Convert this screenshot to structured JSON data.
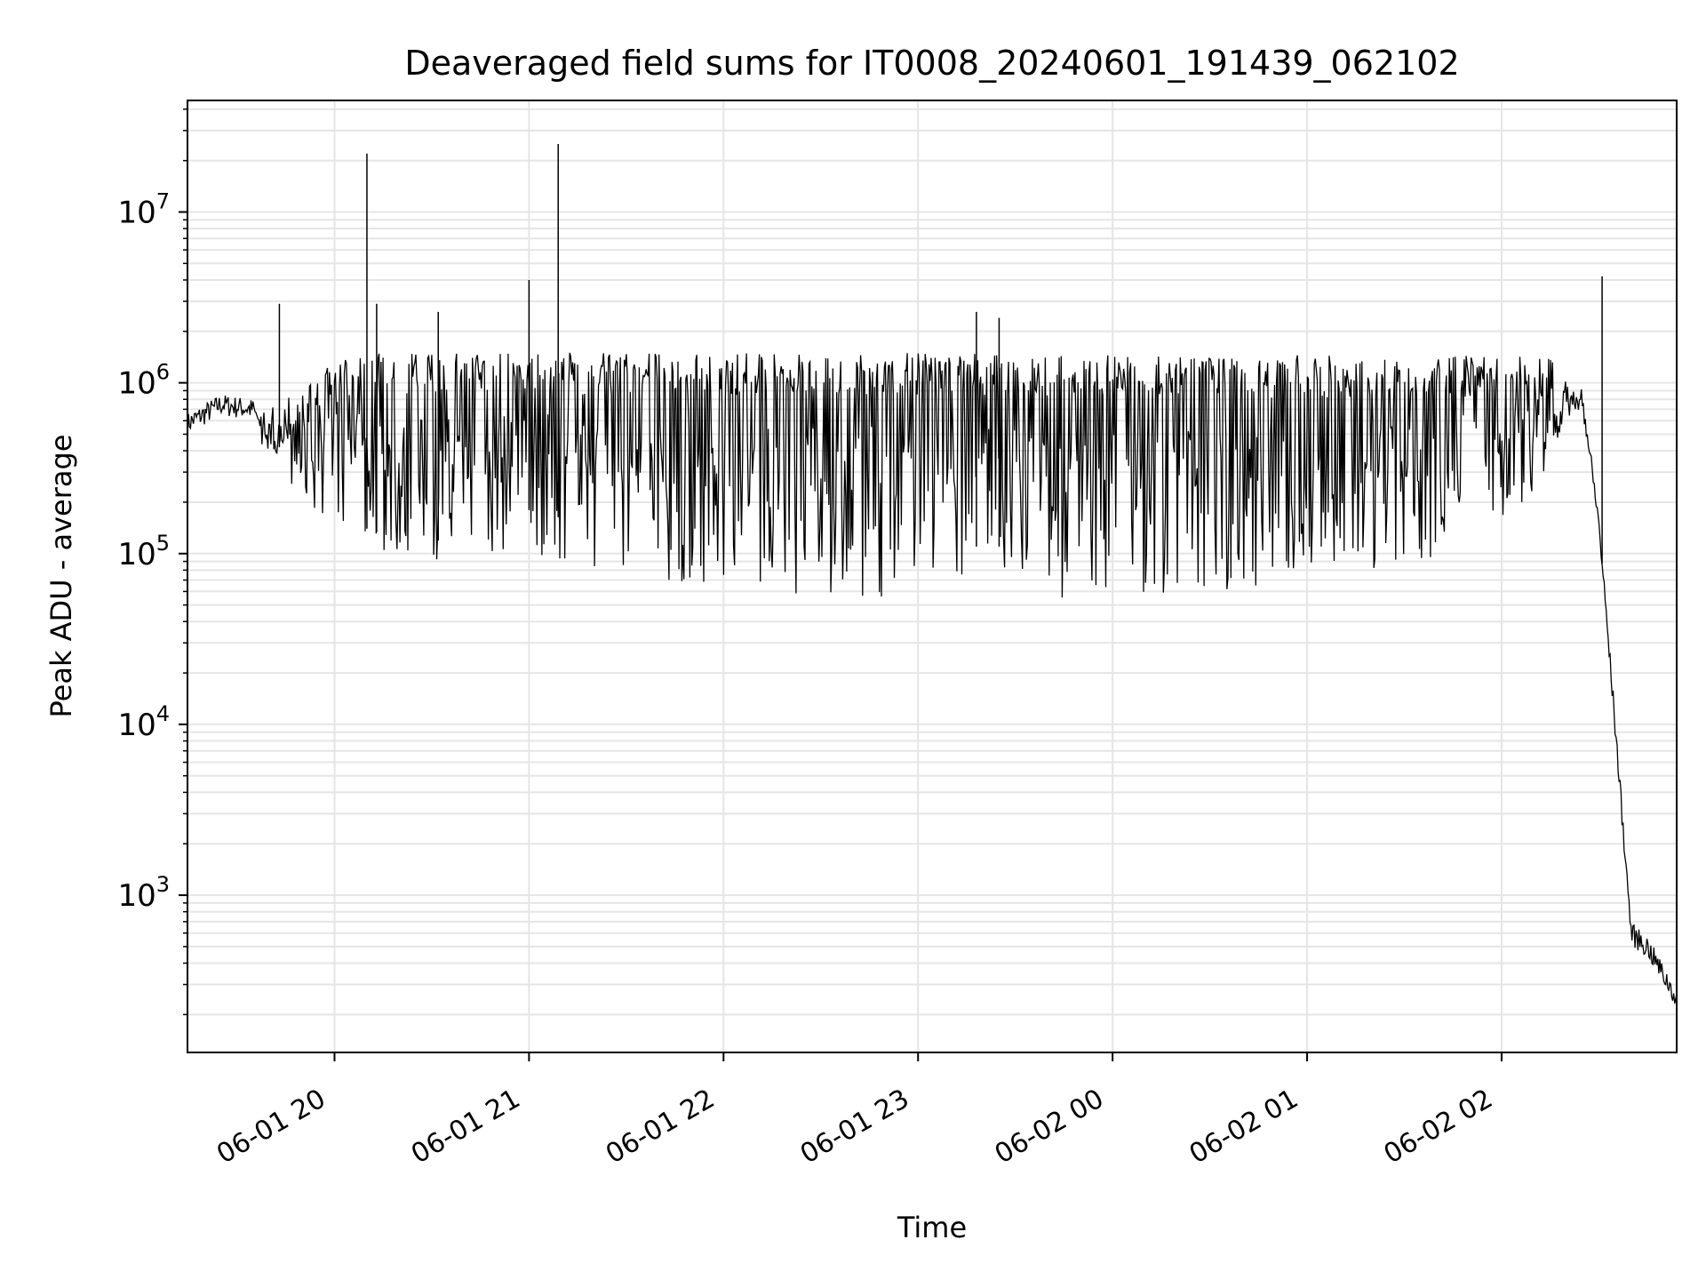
{
  "chart_data": {
    "type": "line",
    "title": "Deaveraged field sums for IT0008_20240601_191439_062102",
    "xlabel": "Time",
    "ylabel": "Peak ADU - average",
    "yscale": "log",
    "xlim": [
      "2024-06-01 19:14:39",
      "2024-06-02 02:54:00"
    ],
    "ylim": [
      120,
      45000000
    ],
    "grid": true,
    "line_color": "#000000",
    "grid_color": "#e5e5e5",
    "x_tick_labels": [
      "06-01 20",
      "06-01 21",
      "06-01 22",
      "06-01 23",
      "06-02 00",
      "06-02 01",
      "06-02 02"
    ],
    "x_ticks": [
      "2024-06-01 20:00",
      "2024-06-01 21:00",
      "2024-06-01 22:00",
      "2024-06-01 23:00",
      "2024-06-02 00:00",
      "2024-06-02 01:00",
      "2024-06-02 02:00"
    ],
    "y_ticks": [
      {
        "value": 1000,
        "base": "10",
        "exp": "3"
      },
      {
        "value": 10000,
        "base": "10",
        "exp": "4"
      },
      {
        "value": 100000,
        "base": "10",
        "exp": "5"
      },
      {
        "value": 1000000,
        "base": "10",
        "exp": "6"
      },
      {
        "value": 10000000,
        "base": "10",
        "exp": "7"
      }
    ],
    "series": [
      {
        "x": [
          "2024-06-01 19:14:39",
          "2024-06-01 19:25",
          "2024-06-01 19:35",
          "2024-06-01 19:40",
          "2024-06-01 19:45",
          "2024-06-01 19:50",
          "2024-06-01 20:00",
          "2024-06-01 20:10",
          "2024-06-01 20:20",
          "2024-06-01 20:30",
          "2024-06-01 20:45",
          "2024-06-01 21:00",
          "2024-06-01 21:30",
          "2024-06-01 22:00",
          "2024-06-01 23:00",
          "2024-06-02 00:00",
          "2024-06-02 01:00",
          "2024-06-02 01:30",
          "2024-06-02 02:00",
          "2024-06-02 02:15",
          "2024-06-02 02:20",
          "2024-06-02 02:25",
          "2024-06-02 02:30",
          "2024-06-02 02:35",
          "2024-06-02 02:40",
          "2024-06-02 02:45",
          "2024-06-02 02:54"
        ],
        "y": [
          580000,
          750000,
          700000,
          450000,
          400000,
          300000,
          180000,
          140000,
          120000,
          115000,
          150000,
          180000,
          130000,
          120000,
          110000,
          110000,
          120000,
          200000,
          400000,
          600000,
          850000,
          800000,
          150000,
          10000,
          600,
          500,
          250
        ],
        "upper": [
          580000,
          750000,
          700000,
          700000,
          800000,
          1000000,
          1300000,
          1500000,
          1500000,
          1500000,
          1500000,
          1500000,
          1500000,
          1500000,
          1500000,
          1450000,
          1450000,
          1500000,
          1450000,
          1400000,
          1000000,
          800000,
          150000,
          10000,
          600,
          500,
          250
        ],
        "lower": [
          580000,
          750000,
          700000,
          400000,
          280000,
          200000,
          150000,
          110000,
          95000,
          90000,
          95000,
          100000,
          75000,
          60000,
          55000,
          55000,
          60000,
          80000,
          150000,
          300000,
          700000,
          800000,
          150000,
          10000,
          600,
          500,
          250
        ]
      }
    ],
    "spikes": [
      {
        "x": "2024-06-01 19:43",
        "y": 2900000
      },
      {
        "x": "2024-06-01 20:10",
        "y": 22000000
      },
      {
        "x": "2024-06-01 20:13",
        "y": 2900000
      },
      {
        "x": "2024-06-01 20:32",
        "y": 2600000
      },
      {
        "x": "2024-06-01 21:00",
        "y": 4000000
      },
      {
        "x": "2024-06-01 21:09",
        "y": 25000000
      },
      {
        "x": "2024-06-01 23:18",
        "y": 2600000
      },
      {
        "x": "2024-06-01 23:25",
        "y": 2400000
      },
      {
        "x": "2024-06-02 02:31",
        "y": 4200000
      }
    ]
  }
}
